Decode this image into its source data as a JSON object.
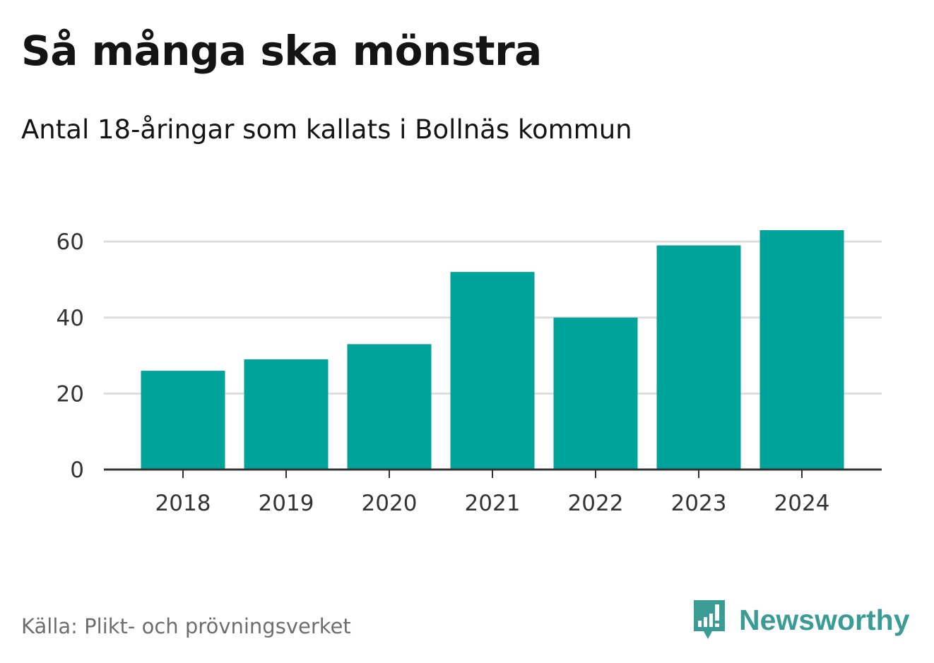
{
  "title": "Så många ska mönstra",
  "subtitle": "Antal 18-åringar som kallats i Bollnäs kommun",
  "source": "Källa: Plikt- och prövningsverket",
  "brand": "Newsworthy",
  "colors": {
    "bar": "#00a39a",
    "gridline": "#dddddd",
    "axis": "#333333",
    "brand": "#3b9b95"
  },
  "chart_data": {
    "type": "bar",
    "title": "Så många ska mönstra",
    "subtitle": "Antal 18-åringar som kallats i Bollnäs kommun",
    "categories": [
      "2018",
      "2019",
      "2020",
      "2021",
      "2022",
      "2023",
      "2024"
    ],
    "values": [
      26,
      29,
      33,
      52,
      40,
      59,
      63
    ],
    "xlabel": "",
    "ylabel": "",
    "ylim": [
      0,
      63
    ],
    "yticks": [
      0,
      20,
      40,
      60
    ],
    "grid": true
  }
}
